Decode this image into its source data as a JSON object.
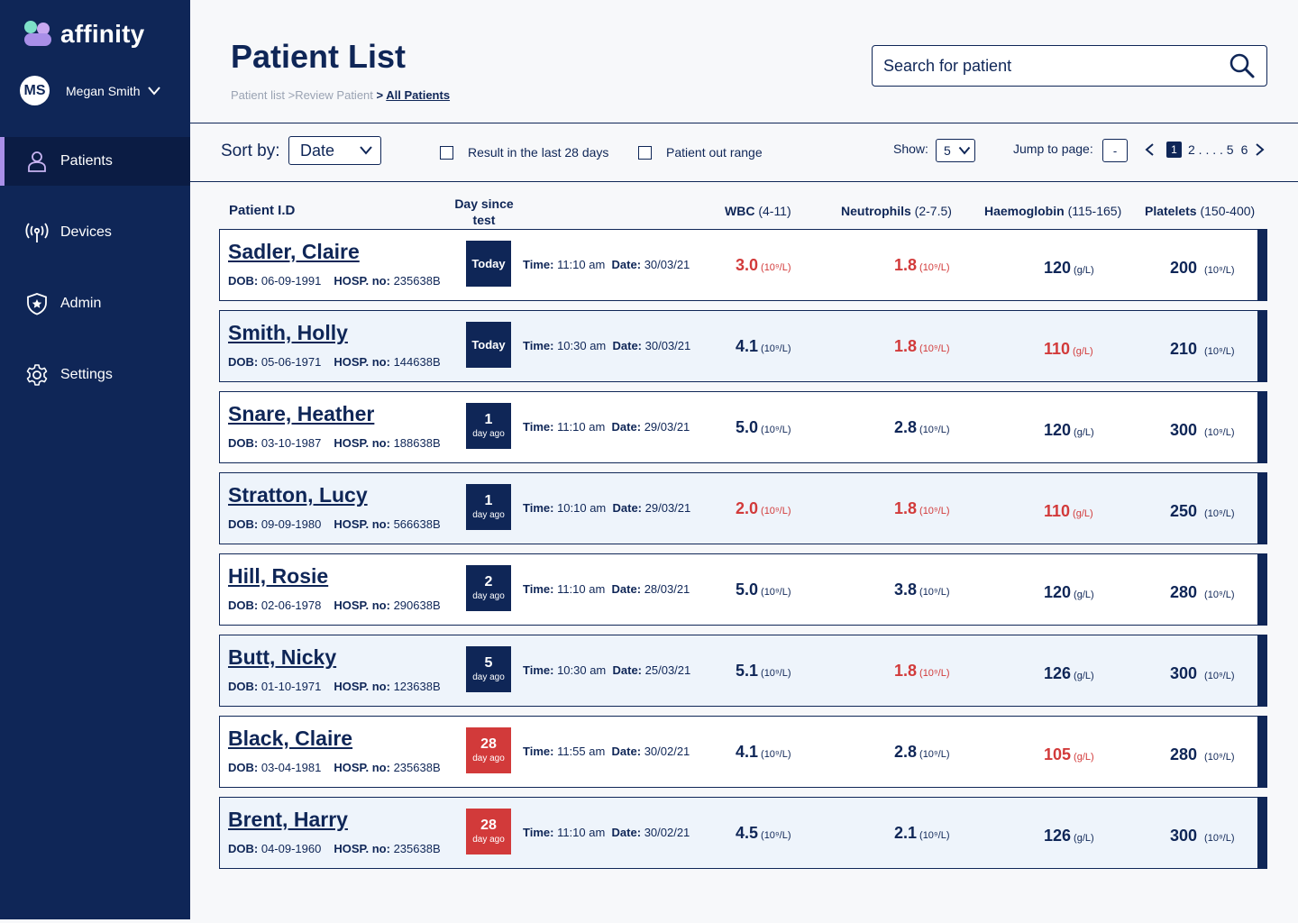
{
  "app": {
    "logo_text": "affinity",
    "user": {
      "initials": "MS",
      "name": "Megan Smith"
    }
  },
  "nav": [
    {
      "label": "Patients",
      "icon": "person-icon",
      "active": true
    },
    {
      "label": "Devices",
      "icon": "antenna-icon",
      "active": false
    },
    {
      "label": "Admin",
      "icon": "shield-star-icon",
      "active": false
    },
    {
      "label": "Settings",
      "icon": "gear-icon",
      "active": false
    }
  ],
  "header": {
    "title": "Patient List",
    "breadcrumb": {
      "part1": "Patient list >",
      "part2": "Review Patient",
      "sep": " > ",
      "current": "All Patients"
    },
    "search_placeholder": "Search for patient"
  },
  "toolbar": {
    "sort_label": "Sort by:",
    "sort_value": "Date",
    "filter1": "Result in the last 28 days",
    "filter2": "Patient out range",
    "show_label": "Show:",
    "show_value": "5",
    "jump_label": "Jump to page:",
    "jump_value": "-",
    "current_page": "1",
    "pages_text": "2 . . . . 5",
    "last_page": "6"
  },
  "columns": {
    "id": "Patient I.D",
    "day": "Day since test",
    "wbc": "WBC",
    "wbc_range": "(4-11)",
    "neu": "Neutrophils",
    "neu_range": "(2-7.5)",
    "hae": "Haemoglobin",
    "hae_range": "(115-165)",
    "pla": "Platelets",
    "pla_range": "(150-400)"
  },
  "labels": {
    "dob": "DOB:",
    "hosp": "HOSP. no:",
    "time": "Time:",
    "date": "Date:",
    "unit_cell": "(10⁹/L)",
    "unit_gl": "(g/L)"
  },
  "colors": {
    "navy": "#0f2657",
    "red": "#d23a3a",
    "accent": "#a98fe8"
  },
  "patients": [
    {
      "name": "Sadler, Claire",
      "dob": "06-09-1991",
      "hosp": "235638B",
      "badge_main": "Today",
      "badge_sub": "",
      "badge_red": false,
      "time": "11:10 am",
      "date": "30/03/21",
      "wbc": "3.0",
      "wbc_flag": true,
      "neu": "1.8",
      "neu_flag": true,
      "hae": "120",
      "hae_flag": false,
      "pla": "200"
    },
    {
      "name": "Smith, Holly",
      "dob": "05-06-1971",
      "hosp": "144638B",
      "badge_main": "Today",
      "badge_sub": "",
      "badge_red": false,
      "time": "10:30 am",
      "date": "30/03/21",
      "wbc": "4.1",
      "wbc_flag": false,
      "neu": "1.8",
      "neu_flag": true,
      "hae": "110",
      "hae_flag": true,
      "pla": "210"
    },
    {
      "name": "Snare, Heather",
      "dob": "03-10-1987",
      "hosp": "188638B",
      "badge_main": "1",
      "badge_sub": "day ago",
      "badge_red": false,
      "time": "11:10 am",
      "date": "29/03/21",
      "wbc": "5.0",
      "wbc_flag": false,
      "neu": "2.8",
      "neu_flag": false,
      "hae": "120",
      "hae_flag": false,
      "pla": "300"
    },
    {
      "name": "Stratton, Lucy",
      "dob": "09-09-1980",
      "hosp": "566638B",
      "badge_main": "1",
      "badge_sub": "day ago",
      "badge_red": false,
      "time": "10:10 am",
      "date": "29/03/21",
      "wbc": "2.0",
      "wbc_flag": true,
      "neu": "1.8",
      "neu_flag": true,
      "hae": "110",
      "hae_flag": true,
      "pla": "250"
    },
    {
      "name": "Hill, Rosie",
      "dob": "02-06-1978",
      "hosp": "290638B",
      "badge_main": "2",
      "badge_sub": "day ago",
      "badge_red": false,
      "time": "11:10 am",
      "date": "28/03/21",
      "wbc": "5.0",
      "wbc_flag": false,
      "neu": "3.8",
      "neu_flag": false,
      "hae": "120",
      "hae_flag": false,
      "pla": "280"
    },
    {
      "name": "Butt, Nicky",
      "dob": "01-10-1971",
      "hosp": "123638B",
      "badge_main": "5",
      "badge_sub": "day ago",
      "badge_red": false,
      "time": "10:30 am",
      "date": "25/03/21",
      "wbc": "5.1",
      "wbc_flag": false,
      "neu": "1.8",
      "neu_flag": true,
      "hae": "126",
      "hae_flag": false,
      "pla": "300"
    },
    {
      "name": "Black, Claire",
      "dob": "03-04-1981",
      "hosp": "235638B",
      "badge_main": "28",
      "badge_sub": "day ago",
      "badge_red": true,
      "time": "11:55 am",
      "date": "30/02/21",
      "wbc": "4.1",
      "wbc_flag": false,
      "neu": "2.8",
      "neu_flag": false,
      "hae": "105",
      "hae_flag": true,
      "pla": "280"
    },
    {
      "name": "Brent, Harry",
      "dob": "04-09-1960",
      "hosp": "235638B",
      "badge_main": "28",
      "badge_sub": "day ago",
      "badge_red": true,
      "time": "11:10 am",
      "date": "30/02/21",
      "wbc": "4.5",
      "wbc_flag": false,
      "neu": "2.1",
      "neu_flag": false,
      "hae": "126",
      "hae_flag": false,
      "pla": "300"
    }
  ]
}
